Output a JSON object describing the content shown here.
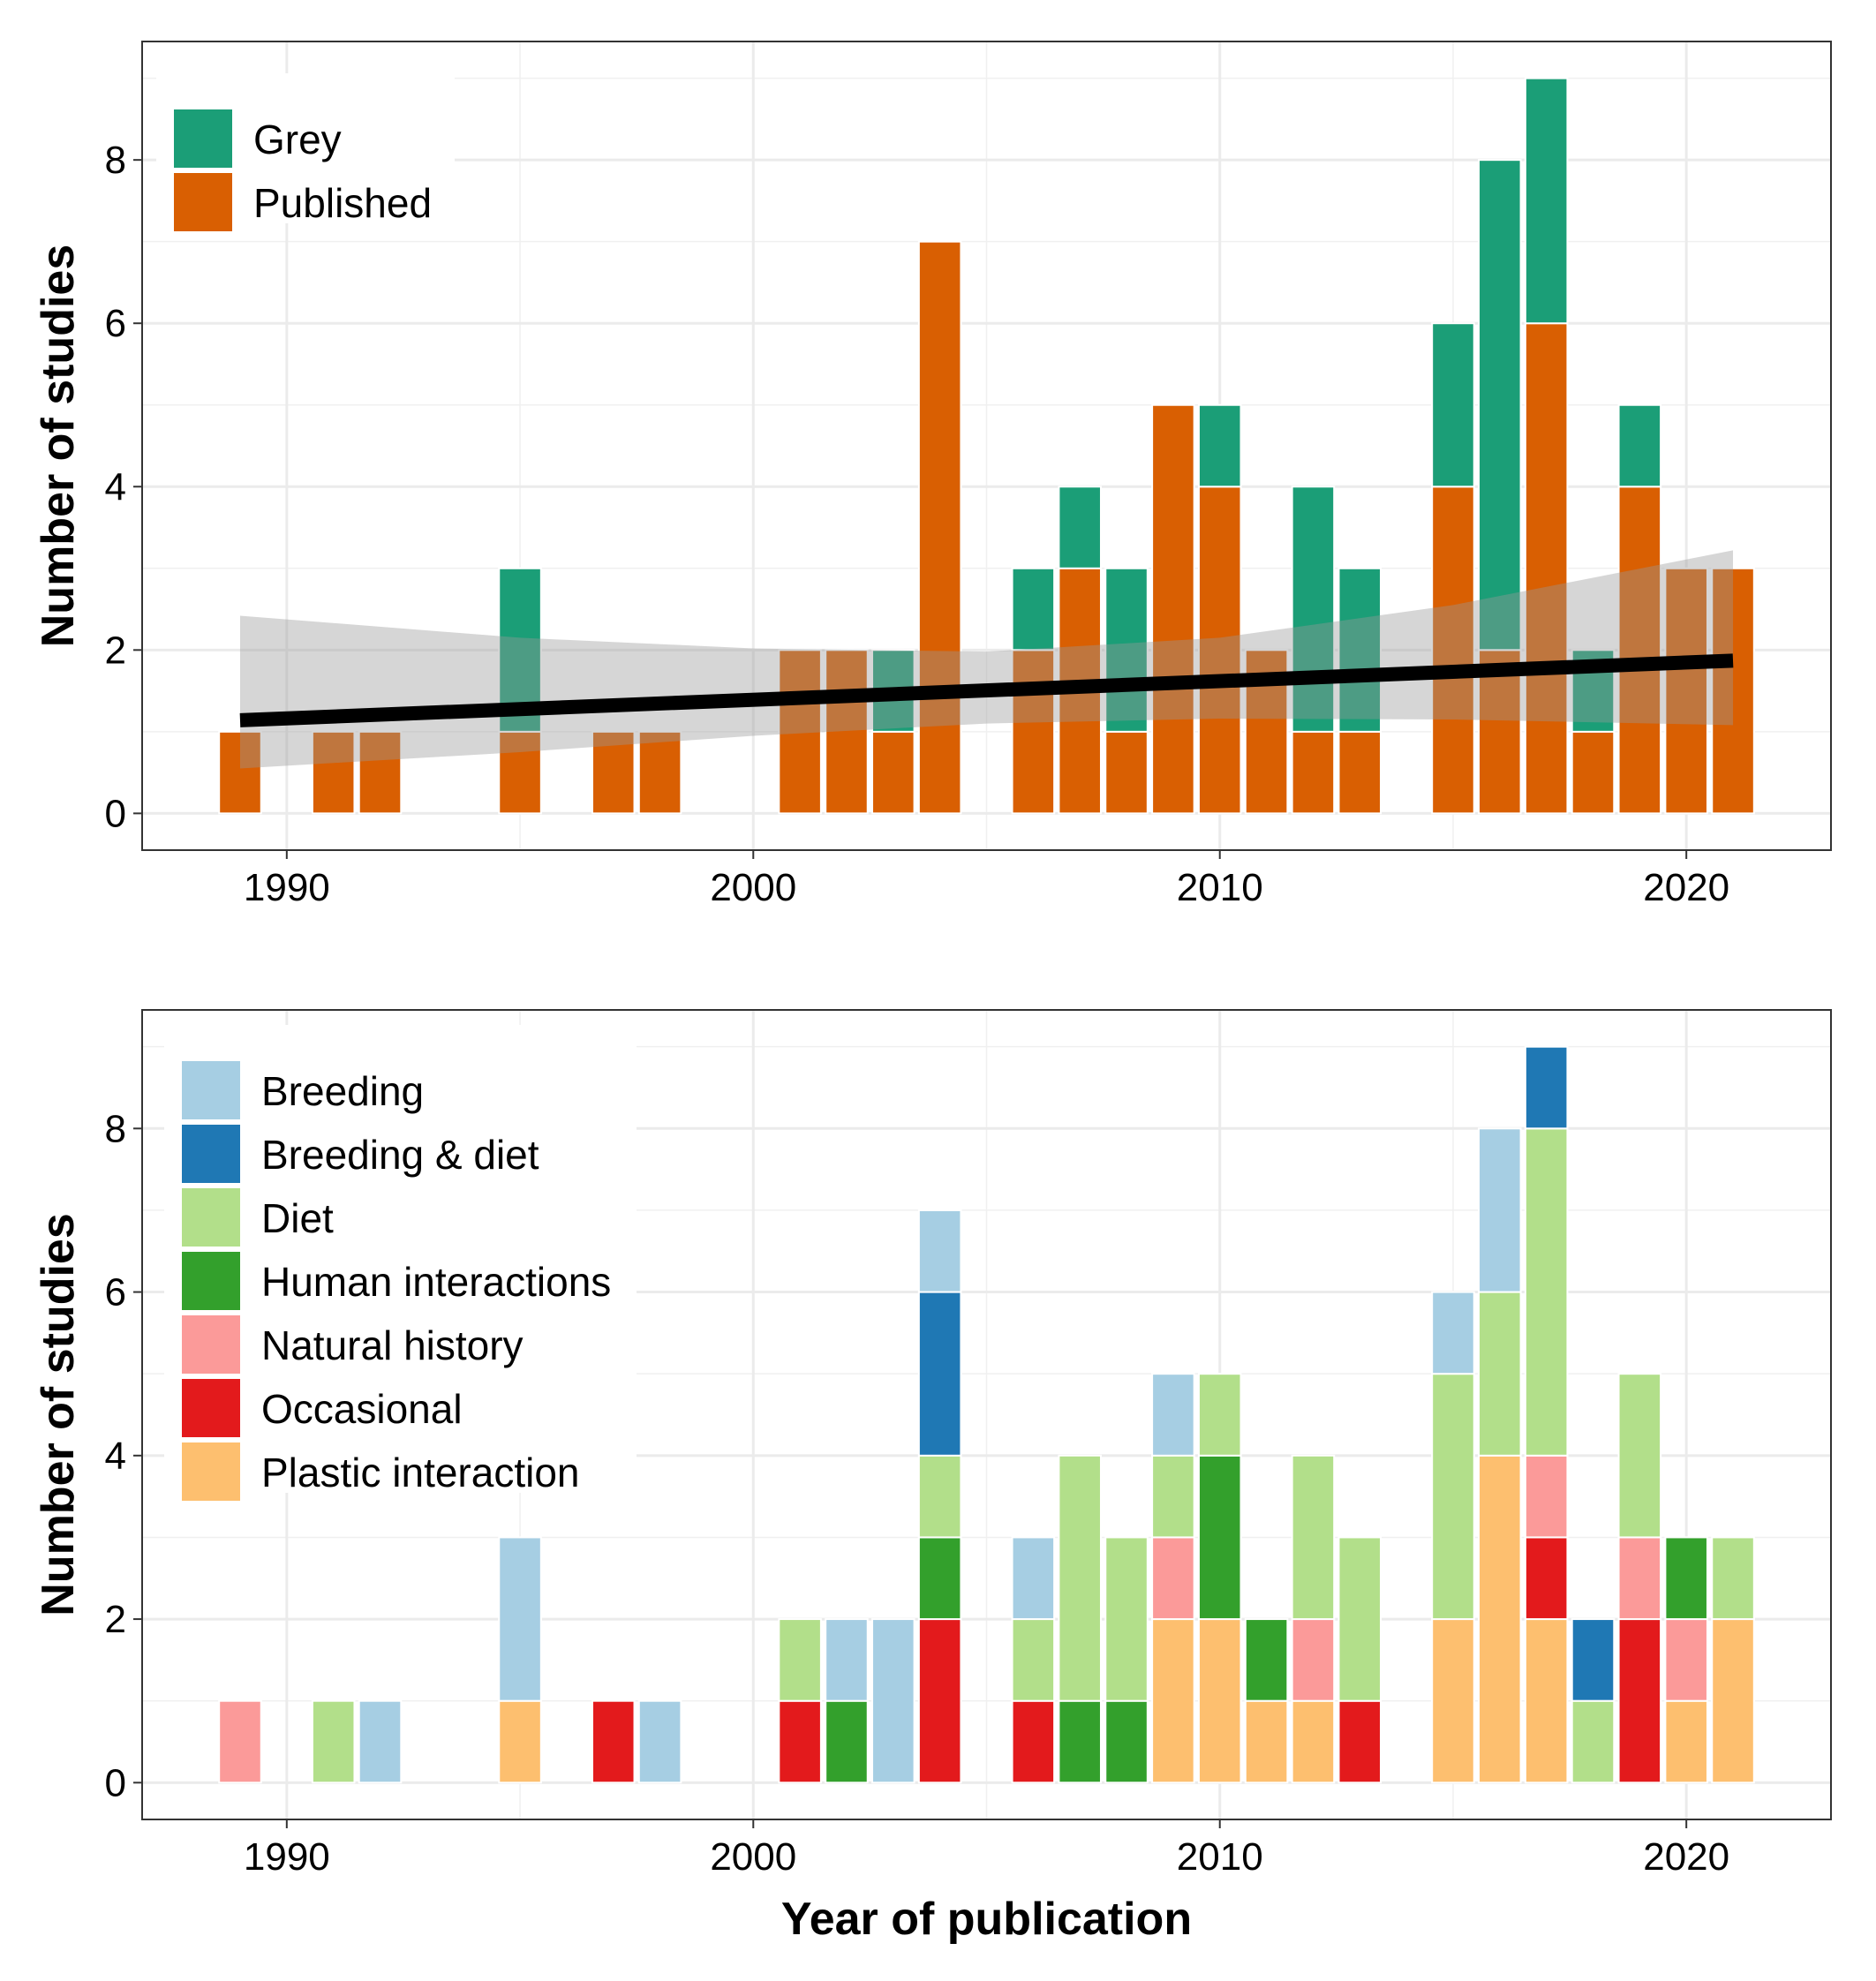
{
  "chart_data": [
    {
      "type": "bar",
      "stacked": true,
      "xlabel": "",
      "ylabel": "Number of studies",
      "xlim": [
        1986.9,
        2023.1
      ],
      "ylim": [
        -0.45,
        9.45
      ],
      "x_ticks": [
        1990,
        2000,
        2010,
        2020
      ],
      "y_ticks": [
        0,
        2,
        4,
        6,
        8
      ],
      "grid": true,
      "legend_position": "top-left",
      "categories": [
        1989,
        1991,
        1992,
        1995,
        1997,
        1998,
        2001,
        2002,
        2003,
        2004,
        2006,
        2007,
        2008,
        2009,
        2010,
        2011,
        2012,
        2013,
        2015,
        2016,
        2017,
        2018,
        2019,
        2020,
        2021
      ],
      "series": [
        {
          "name": "Published",
          "color": "#D95F02",
          "values": [
            1,
            1,
            1,
            1,
            1,
            1,
            2,
            2,
            1,
            7,
            2,
            3,
            1,
            5,
            4,
            2,
            1,
            1,
            4,
            2,
            6,
            1,
            4,
            3,
            3
          ]
        },
        {
          "name": "Grey",
          "color": "#1B9E77",
          "values": [
            0,
            0,
            0,
            2,
            0,
            0,
            0,
            0,
            1,
            0,
            1,
            1,
            2,
            0,
            1,
            0,
            3,
            2,
            2,
            6,
            3,
            1,
            1,
            0,
            0
          ]
        }
      ],
      "legend_order": [
        "Grey",
        "Published"
      ],
      "trend": {
        "type": "linear",
        "color": "#000000",
        "points": [
          [
            1989,
            1.14
          ],
          [
            2021,
            1.87
          ]
        ],
        "ci_lower": [
          [
            1989,
            0.55
          ],
          [
            1995,
            0.75
          ],
          [
            2000,
            0.95
          ],
          [
            2005,
            1.1
          ],
          [
            2010,
            1.16
          ],
          [
            2015,
            1.15
          ],
          [
            2021,
            1.08
          ]
        ],
        "ci_upper": [
          [
            1989,
            2.42
          ],
          [
            1995,
            2.15
          ],
          [
            2000,
            2.02
          ],
          [
            2005,
            1.98
          ],
          [
            2010,
            2.15
          ],
          [
            2015,
            2.55
          ],
          [
            2021,
            3.22
          ]
        ]
      }
    },
    {
      "type": "bar",
      "stacked": true,
      "xlabel": "Year of publication",
      "ylabel": "Number of studies",
      "xlim": [
        1986.9,
        2023.1
      ],
      "ylim": [
        -0.45,
        9.45
      ],
      "x_ticks": [
        1990,
        2000,
        2010,
        2020
      ],
      "y_ticks": [
        0,
        2,
        4,
        6,
        8
      ],
      "grid": true,
      "legend_position": "top-left",
      "categories": [
        1989,
        1991,
        1992,
        1995,
        1997,
        1998,
        2001,
        2002,
        2003,
        2004,
        2006,
        2007,
        2008,
        2009,
        2010,
        2011,
        2012,
        2013,
        2015,
        2016,
        2017,
        2018,
        2019,
        2020,
        2021
      ],
      "series": [
        {
          "name": "Plastic interaction",
          "color": "#FDBF6F",
          "values": [
            0,
            0,
            0,
            1,
            0,
            0,
            0,
            0,
            0,
            0,
            0,
            0,
            0,
            2,
            2,
            1,
            1,
            0,
            2,
            4,
            2,
            0,
            0,
            1,
            2
          ]
        },
        {
          "name": "Occasional",
          "color": "#E31A1C",
          "values": [
            0,
            0,
            0,
            0,
            1,
            0,
            1,
            0,
            0,
            2,
            1,
            0,
            0,
            0,
            0,
            0,
            0,
            1,
            0,
            0,
            1,
            0,
            2,
            0,
            0
          ]
        },
        {
          "name": "Natural history",
          "color": "#FB9A99",
          "values": [
            1,
            0,
            0,
            0,
            0,
            0,
            0,
            0,
            0,
            0,
            0,
            0,
            0,
            1,
            0,
            0,
            1,
            0,
            0,
            0,
            1,
            0,
            1,
            1,
            0
          ]
        },
        {
          "name": "Human interactions",
          "color": "#33A02C",
          "values": [
            0,
            0,
            0,
            0,
            0,
            0,
            0,
            1,
            0,
            1,
            0,
            1,
            1,
            0,
            2,
            1,
            0,
            0,
            0,
            0,
            0,
            0,
            0,
            1,
            0
          ]
        },
        {
          "name": "Diet",
          "color": "#B2DF8A",
          "values": [
            0,
            1,
            0,
            0,
            0,
            0,
            1,
            0,
            0,
            1,
            1,
            3,
            2,
            1,
            1,
            0,
            2,
            2,
            3,
            2,
            4,
            1,
            2,
            0,
            1
          ]
        },
        {
          "name": "Breeding & diet",
          "color": "#1F78B4",
          "values": [
            0,
            0,
            0,
            0,
            0,
            0,
            0,
            0,
            0,
            2,
            0,
            0,
            0,
            0,
            0,
            0,
            0,
            0,
            0,
            0,
            1,
            1,
            0,
            0,
            0
          ]
        },
        {
          "name": "Breeding",
          "color": "#A6CEE3",
          "values": [
            0,
            0,
            1,
            2,
            0,
            1,
            0,
            1,
            2,
            1,
            1,
            0,
            0,
            1,
            0,
            0,
            0,
            0,
            1,
            2,
            0,
            0,
            0,
            0,
            0
          ]
        }
      ],
      "legend_order": [
        "Breeding",
        "Breeding & diet",
        "Diet",
        "Human interactions",
        "Natural history",
        "Occasional",
        "Plastic interaction"
      ]
    }
  ]
}
